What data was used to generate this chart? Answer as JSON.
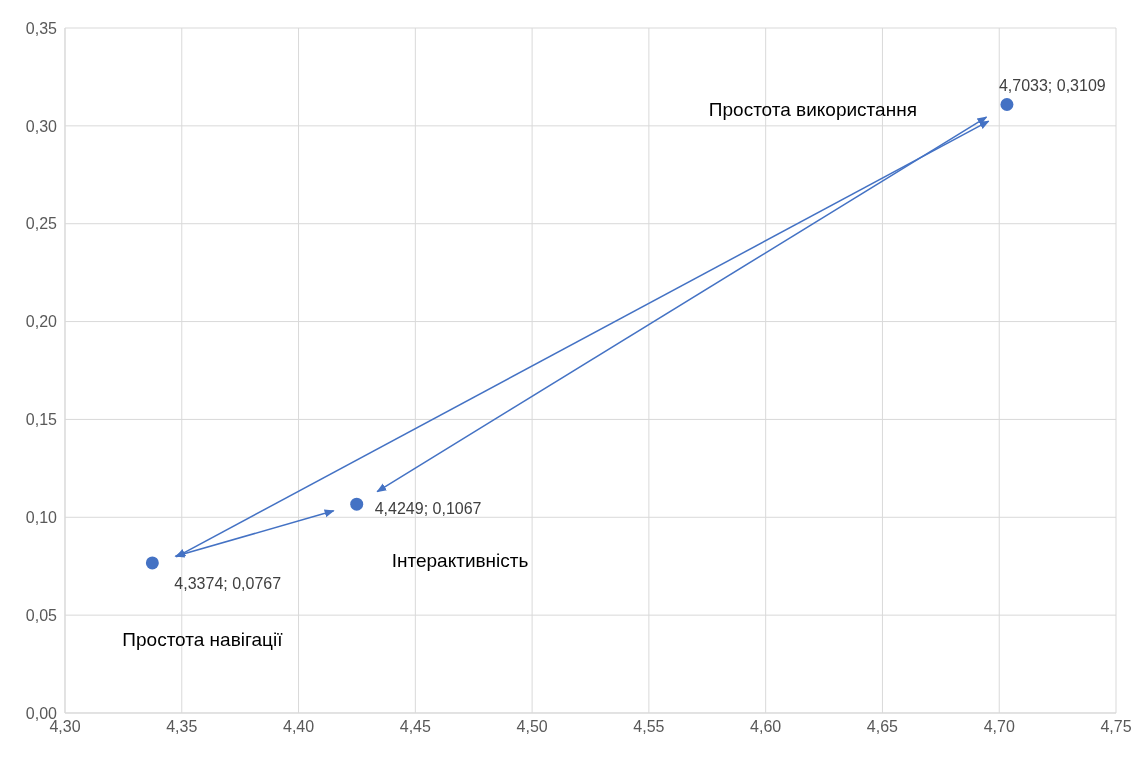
{
  "chart_data": {
    "type": "scatter",
    "x": [
      4.3374,
      4.4249,
      4.7033
    ],
    "values": [
      0.0767,
      0.1067,
      0.3109
    ],
    "color": "#4472c4",
    "value_labels": [
      "4,3374; 0,0767",
      "4,4249; 0,1067",
      "4,7033; 0,3109"
    ],
    "marker": "circle",
    "grid": true,
    "xlim": [
      4.3,
      4.75
    ],
    "xticks": [
      {
        "value": 4.3,
        "label": "4,30"
      },
      {
        "value": 4.35,
        "label": "4,35"
      },
      {
        "value": 4.4,
        "label": "4,40"
      },
      {
        "value": 4.45,
        "label": "4,45"
      },
      {
        "value": 4.5,
        "label": "4,50"
      },
      {
        "value": 4.55,
        "label": "4,55"
      },
      {
        "value": 4.6,
        "label": "4,60"
      },
      {
        "value": 4.65,
        "label": "4,65"
      },
      {
        "value": 4.7,
        "label": "4,70"
      },
      {
        "value": 4.75,
        "label": "4,75"
      }
    ],
    "ylim": [
      0,
      0.35
    ],
    "yticks": [
      {
        "value": 0,
        "label": "0,00"
      },
      {
        "value": 0.05,
        "label": "0,05"
      },
      {
        "value": 0.1,
        "label": "0,10"
      },
      {
        "value": 0.15,
        "label": "0,15"
      },
      {
        "value": 0.2,
        "label": "0,20"
      },
      {
        "value": 0.25,
        "label": "0,25"
      },
      {
        "value": 0.3,
        "label": "0,30"
      },
      {
        "value": 0.35,
        "label": "0,35"
      }
    ],
    "annotations": [
      "Простота навігації",
      "Інтерактивність",
      "Простота використання"
    ]
  }
}
